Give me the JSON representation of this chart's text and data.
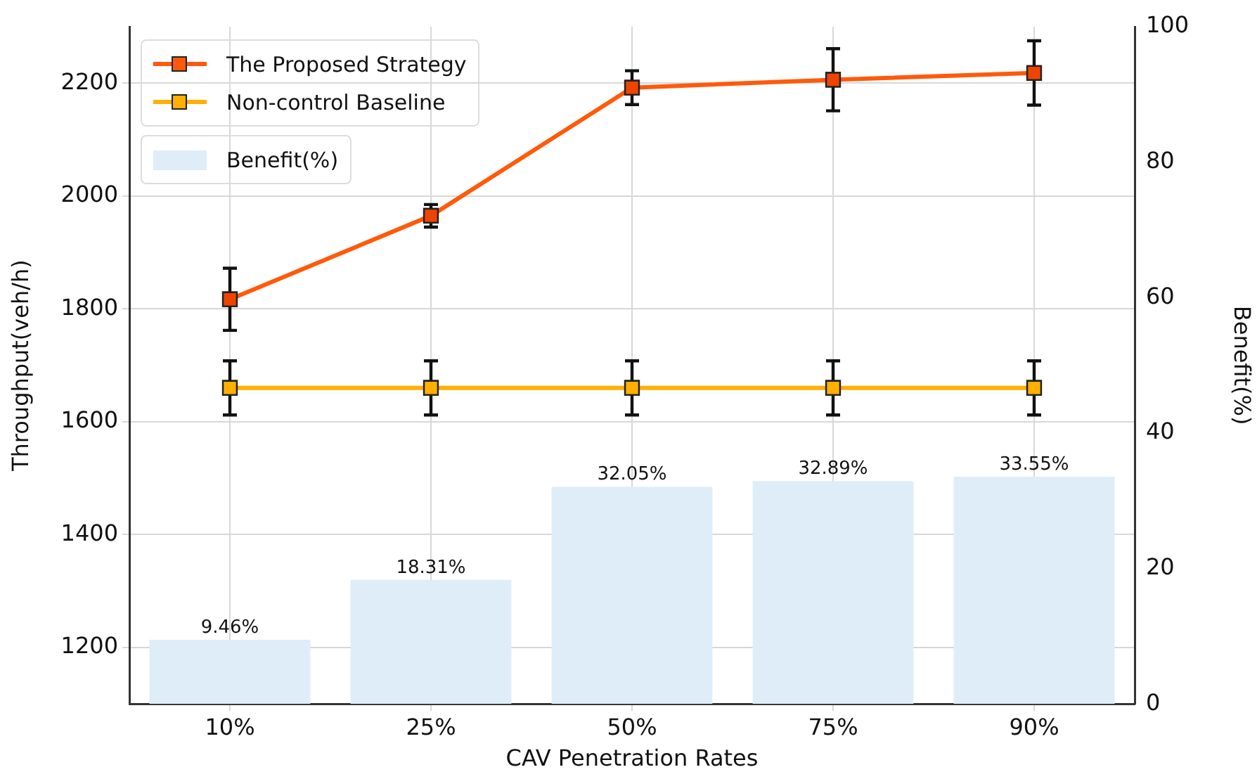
{
  "chart_data": {
    "type": "line",
    "xlabel": "CAV Penetration Rates",
    "ylabel": "Throughput(veh/h)",
    "y2label": "Benefit(%)",
    "categories": [
      "10%",
      "25%",
      "50%",
      "75%",
      "90%"
    ],
    "series": [
      {
        "name": "The Proposed Strategy",
        "color": "#ff5a0a",
        "values": [
          1817,
          1965,
          2192,
          2206,
          2218
        ],
        "errors": [
          55,
          20,
          30,
          55,
          57
        ]
      },
      {
        "name": "Non-control Baseline",
        "color": "#ffb000",
        "values": [
          1660,
          1660,
          1660,
          1660,
          1660
        ],
        "errors": [
          48,
          48,
          48,
          48,
          48
        ]
      },
      {
        "name": "Benefit(%)",
        "type": "bar",
        "axis": "y2",
        "color": "#deedf8",
        "values": [
          9.46,
          18.31,
          32.05,
          32.89,
          33.55
        ],
        "value_labels": [
          "9.46%",
          "18.31%",
          "32.05%",
          "32.89%",
          "33.55%"
        ]
      }
    ],
    "ylim": [
      1100,
      2300
    ],
    "yticks": [
      1200,
      1400,
      1600,
      1800,
      2000,
      2200
    ],
    "y2lim": [
      0,
      100
    ],
    "y2ticks": [
      0,
      20,
      40,
      60,
      80,
      100
    ],
    "grid": true,
    "legend": "top left",
    "marker": "square",
    "line_style": "solid"
  }
}
